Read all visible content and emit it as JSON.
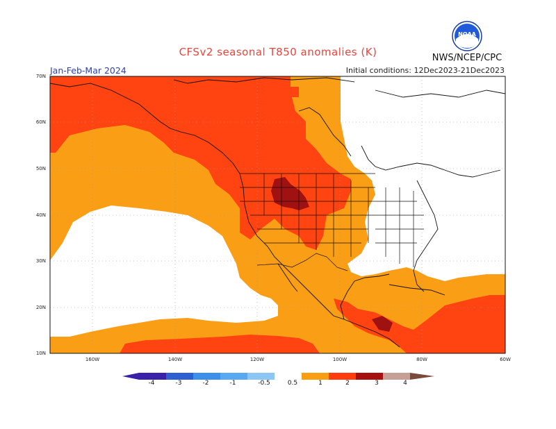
{
  "title": "CFSv2 seasonal T850 anomalies (K)",
  "period": "Jan-Feb-Mar 2024",
  "initial_conditions": "Initial conditions: 12Dec2023-21Dec2023",
  "agency": "NWS/NCEP/CPC",
  "logo_text": "NOAA",
  "lat_labels": [
    "70N",
    "60N",
    "50N",
    "40N",
    "30N",
    "20N",
    "10N"
  ],
  "lon_labels": [
    "160W",
    "140W",
    "120W",
    "100W",
    "80W",
    "60W"
  ],
  "colorbar": {
    "ticks": [
      "-4",
      "-3",
      "-2",
      "-1",
      "-0.5",
      "0.5",
      "1",
      "2",
      "3",
      "4"
    ],
    "colors": [
      "#3a22a8",
      "#2e5fd0",
      "#3d8fe8",
      "#5aa8f0",
      "#8cc6f5",
      "#ffffff",
      "#f99d12",
      "#ff3c0e",
      "#a80f0f",
      "#c7a095"
    ]
  },
  "anomaly_colors": {
    "warm_0.5_1": "#fa9e16",
    "warm_1_2": "#ff4411",
    "warm_2_3": "#a01111",
    "neutral": "#ffffff"
  }
}
